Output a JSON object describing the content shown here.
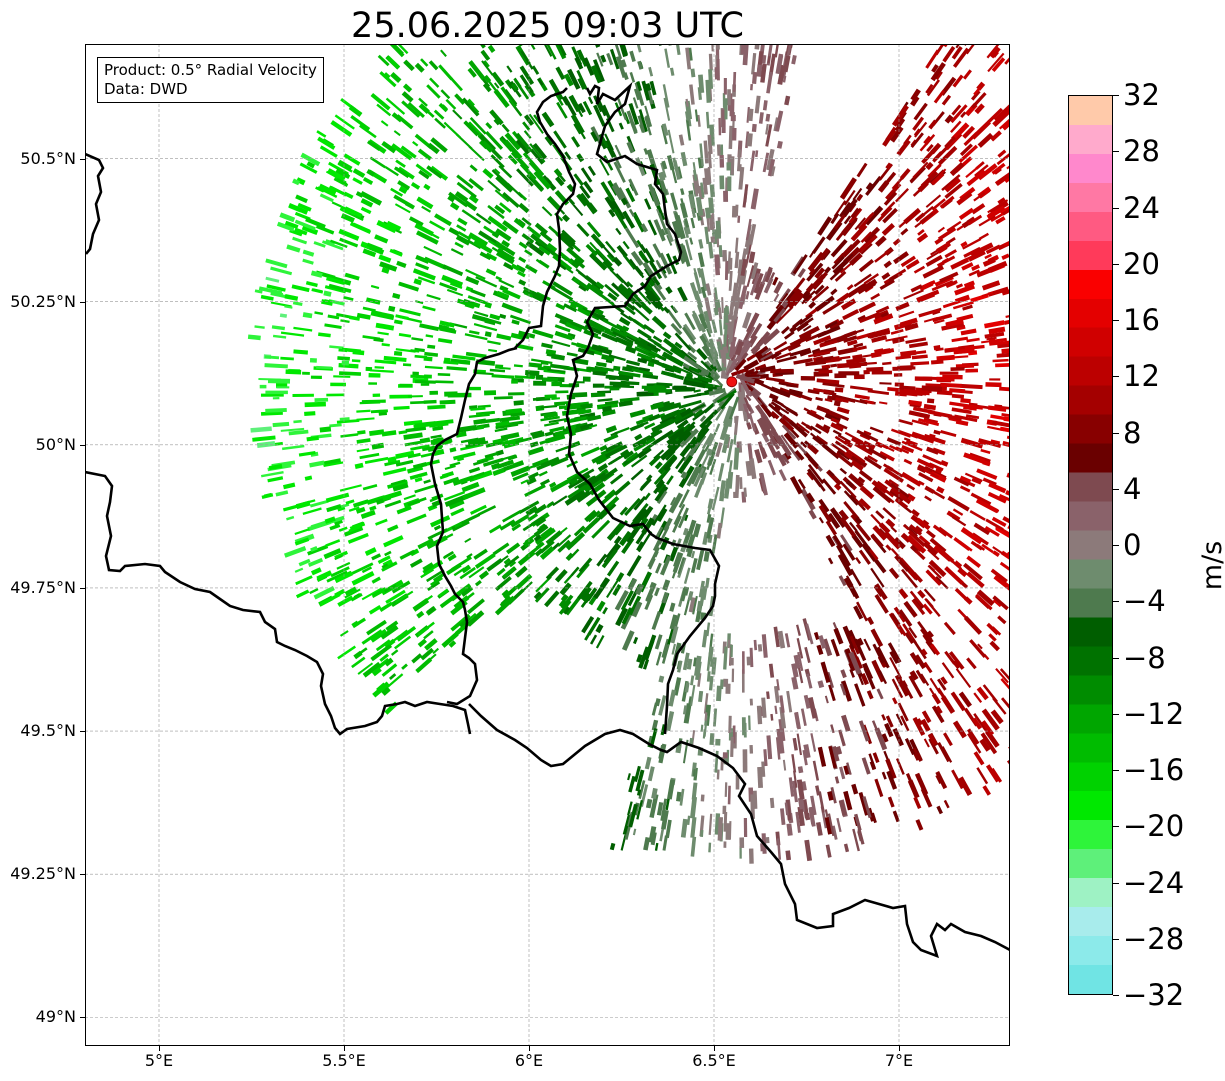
{
  "title": "25.06.2025 09:03 UTC",
  "info_box": {
    "product": "Product: 0.5° Radial Velocity",
    "source": "Data: DWD"
  },
  "map": {
    "extent": {
      "lon": [
        4.8,
        7.3
      ],
      "lat": [
        48.95,
        50.7
      ]
    },
    "radar_site": {
      "lon": 6.548,
      "lat": 50.11,
      "color": "#ee1111"
    },
    "range_ring_center": {
      "lon": 6.55,
      "lat": 50.11
    },
    "lat_ticks": [
      {
        "value": 50.5,
        "label": "50.5°N"
      },
      {
        "value": 50.25,
        "label": "50.25°N"
      },
      {
        "value": 50.0,
        "label": "50°N"
      },
      {
        "value": 49.75,
        "label": "49.75°N"
      },
      {
        "value": 49.5,
        "label": "49.5°N"
      },
      {
        "value": 49.25,
        "label": "49.25°N"
      },
      {
        "value": 49.0,
        "label": "49°N"
      }
    ],
    "lon_ticks": [
      {
        "value": 5.0,
        "label": "5°E"
      },
      {
        "value": 5.5,
        "label": "5.5°E"
      },
      {
        "value": 6.0,
        "label": "6°E"
      },
      {
        "value": 6.5,
        "label": "6.5°E"
      },
      {
        "value": 7.0,
        "label": "7°E"
      }
    ],
    "gridlines": true
  },
  "colorbar": {
    "unit": "m/s",
    "min": -32,
    "max": 32,
    "tick_labels": [
      "32",
      "28",
      "24",
      "20",
      "16",
      "12",
      "8",
      "4",
      "0",
      "−4",
      "−8",
      "−12",
      "−16",
      "−20",
      "−24",
      "−28",
      "−32"
    ],
    "bands": [
      "#70e4e4",
      "#8ceaea",
      "#a8ecec",
      "#9ef2c4",
      "#5ef07a",
      "#2ef43a",
      "#00e800",
      "#00d200",
      "#00bc00",
      "#00a600",
      "#008c00",
      "#007200",
      "#005e00",
      "#4e7a4e",
      "#6e8c6e",
      "#8c7a7a",
      "#8a626a",
      "#7e4a50",
      "#6a0000",
      "#880000",
      "#a40000",
      "#bc0000",
      "#d00000",
      "#e40000",
      "#fa0000",
      "#ff3a5a",
      "#ff5a82",
      "#ff78a4",
      "#ff88cc",
      "#ffaacc",
      "#ffcaaa"
    ]
  }
}
